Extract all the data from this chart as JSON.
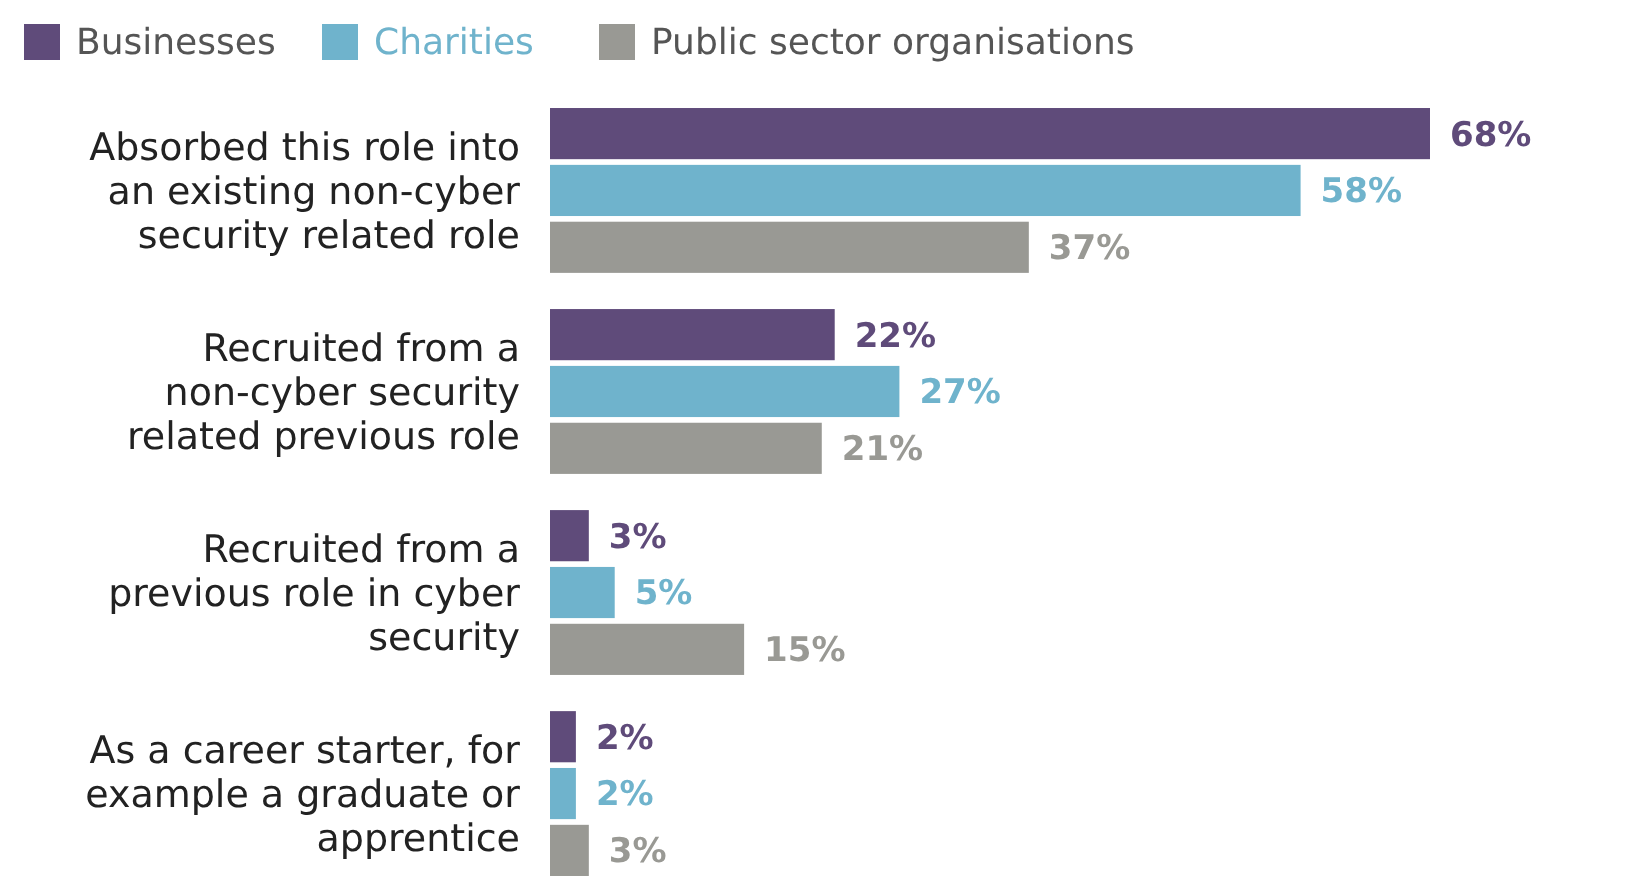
{
  "chart_data": {
    "type": "bar",
    "orientation": "horizontal",
    "categories": [
      "Absorbed this role into an existing non-cyber security related role",
      "Recruited from a non-cyber security related previous role",
      "Recruited from a previous role in cyber security",
      "As a career starter, for example a graduate or apprentice"
    ],
    "series": [
      {
        "name": "Businesses",
        "color": "#5f4b7a",
        "values": [
          68,
          22,
          3,
          2
        ],
        "value_labels": [
          "68%",
          "22%",
          "3%",
          "2%"
        ]
      },
      {
        "name": "Charities",
        "color": "#6fb3cc",
        "values": [
          58,
          27,
          5,
          2
        ],
        "value_labels": [
          "58%",
          "27%",
          "5%",
          "2%"
        ]
      },
      {
        "name": "Public sector organisations",
        "color": "#999994",
        "values": [
          37,
          21,
          15,
          3
        ],
        "value_labels": [
          "37%",
          "21%",
          "15%",
          "3%"
        ]
      }
    ],
    "legend": "top left"
  }
}
